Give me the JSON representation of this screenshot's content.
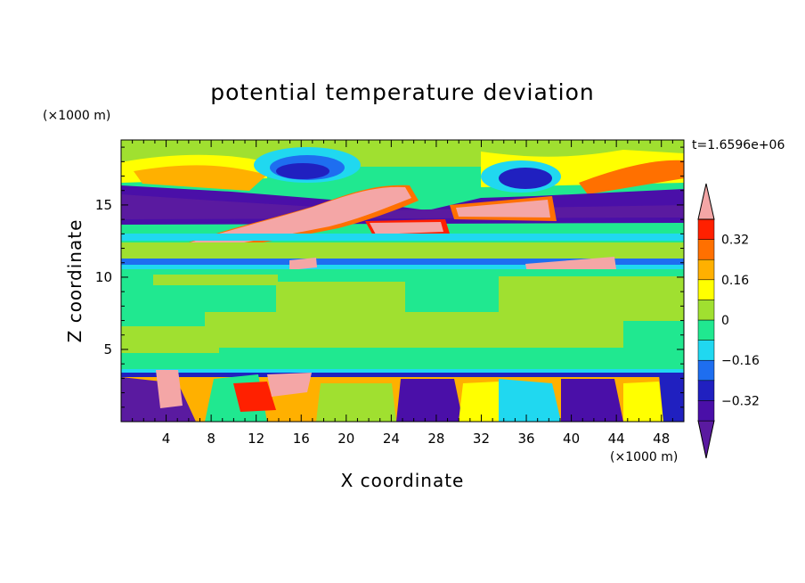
{
  "chart_data": {
    "type": "heatmap",
    "title": "potential temperature deviation",
    "xlabel": "X coordinate",
    "ylabel": "Z coordinate",
    "x_unit": "(×1000 m)",
    "y_unit": "(×1000 m)",
    "time_label": "t=1.6596e+06",
    "xlim": [
      0,
      50
    ],
    "ylim": [
      0,
      19.5
    ],
    "x_ticks": [
      4,
      8,
      12,
      16,
      20,
      24,
      28,
      32,
      36,
      40,
      44,
      48
    ],
    "y_ticks": [
      5,
      10,
      15
    ],
    "colorbar": {
      "levels": [
        -0.4,
        -0.32,
        -0.24,
        -0.16,
        -0.08,
        0,
        0.08,
        0.16,
        0.24,
        0.32,
        0.4
      ],
      "labeled_levels": [
        0.32,
        0.16,
        0,
        -0.16,
        -0.32
      ],
      "colors_low_to_high": [
        "#5a1aa0",
        "#4a0fa8",
        "#2020c0",
        "#1e6ef0",
        "#20d8f0",
        "#20e890",
        "#a0e030",
        "#ffff00",
        "#ffb000",
        "#ff7000",
        "#ff2000",
        "#f4a6a6"
      ]
    }
  }
}
